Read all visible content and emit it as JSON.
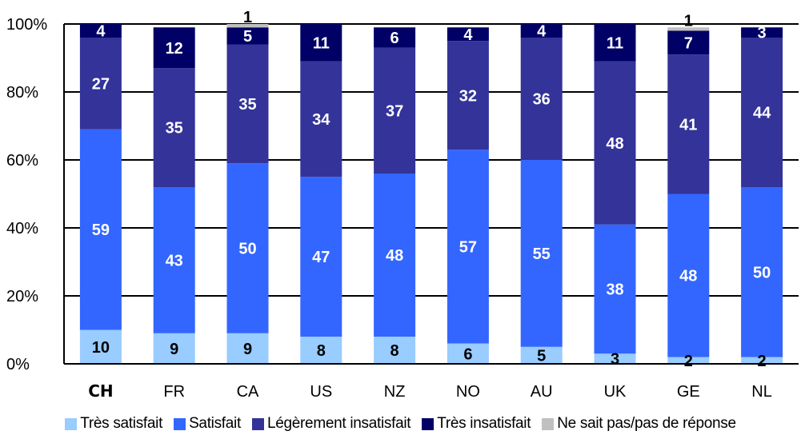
{
  "chart_data": {
    "type": "bar",
    "stacked": true,
    "percent_stacked": true,
    "categories": [
      "CH",
      "FR",
      "CA",
      "US",
      "NZ",
      "NO",
      "AU",
      "UK",
      "GE",
      "NL"
    ],
    "highlight_category": "CH",
    "series": [
      {
        "name": "Très satisfait",
        "color": "#99ccff",
        "values": [
          10,
          9,
          9,
          8,
          8,
          6,
          5,
          3,
          2,
          2
        ],
        "labels": [
          "10",
          "9",
          "9",
          "8",
          "8",
          "6",
          "5",
          "3",
          "2",
          "2"
        ]
      },
      {
        "name": "Satisfait",
        "color": "#3366ff",
        "values": [
          59,
          43,
          50,
          47,
          48,
          57,
          55,
          38,
          48,
          50
        ],
        "labels": [
          "59",
          "43",
          "50",
          "47",
          "48",
          "57",
          "55",
          "38",
          "48",
          "50"
        ]
      },
      {
        "name": "Légèrement insatisfait",
        "color": "#333399",
        "values": [
          27,
          35,
          35,
          34,
          37,
          32,
          36,
          48,
          41,
          44
        ],
        "labels": [
          "27",
          "35",
          "35",
          "34",
          "37",
          "32",
          "36",
          "48",
          "41",
          "44"
        ]
      },
      {
        "name": "Très insatisfait",
        "color": "#000066",
        "values": [
          4,
          12,
          5,
          11,
          6,
          4,
          4,
          11,
          7,
          3
        ],
        "labels": [
          "4",
          "12",
          "5",
          "11",
          "6",
          "4",
          "4",
          "11",
          "7",
          "3"
        ]
      },
      {
        "name": "Ne sait pas/pas de réponse",
        "color": "#c0c0c0",
        "values": [
          0,
          0,
          1,
          0,
          0,
          0,
          0,
          0,
          1,
          0
        ],
        "labels": [
          "",
          "",
          "1",
          "",
          "",
          "",
          "",
          "",
          "1",
          ""
        ]
      }
    ],
    "y_ticks": [
      "0%",
      "20%",
      "40%",
      "60%",
      "80%",
      "100%"
    ],
    "ylim": [
      0,
      100
    ],
    "grid": true,
    "legend_position": "bottom"
  }
}
